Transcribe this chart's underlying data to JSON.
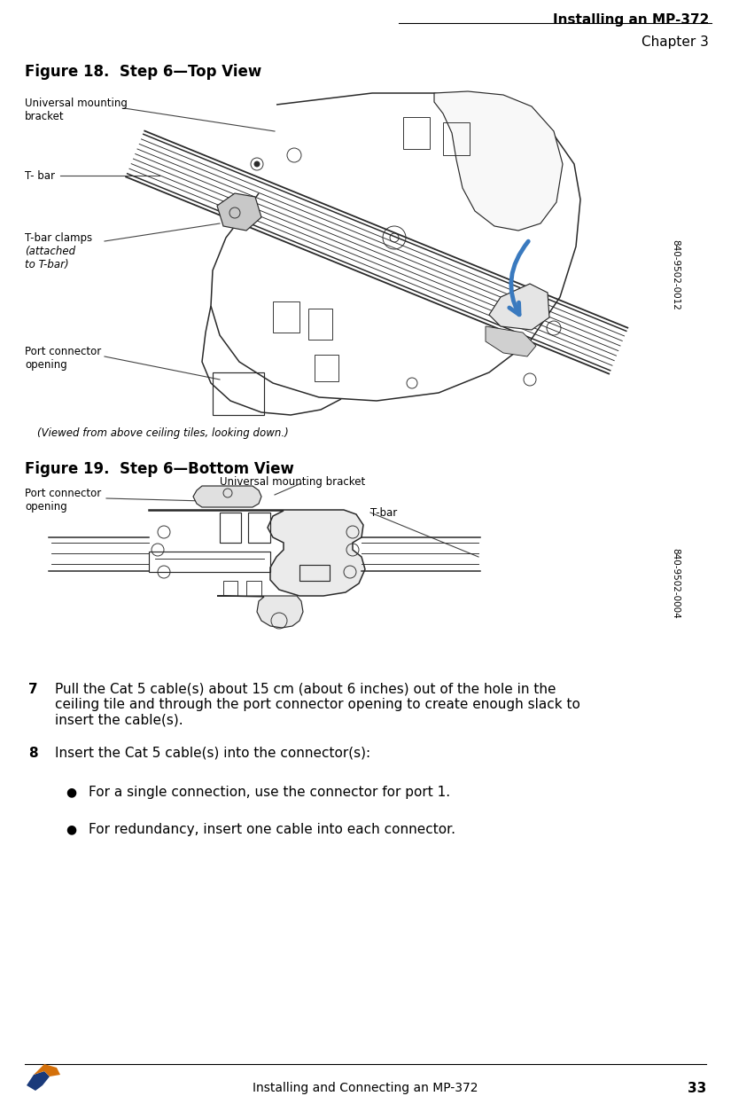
{
  "page_title": "Installing an MP-372",
  "page_subtitle": "Chapter 3",
  "footer_text": "Installing and Connecting an MP-372",
  "page_number": "33",
  "fig18_title": "Figure 18.  Step 6—Top View",
  "fig19_title": "Figure 19.  Step 6—Bottom View",
  "fig18_caption": "(Viewed from above ceiling tiles, looking down.)",
  "fig18_part_number": "840-9502-0012",
  "fig19_part_number": "840-9502-0004",
  "fig18_labels": {
    "universal_mounting_bracket": "Universal mounting\nbracket",
    "t_bar": "T- bar",
    "t_bar_clamps": "T-bar clamps",
    "t_bar_clamps_italic": "(attached\nto T-bar)",
    "port_connector_opening": "Port connector\nopening"
  },
  "fig19_labels": {
    "port_connector_opening": "Port connector\nopening",
    "universal_mounting_bracket": "Universal mounting bracket",
    "t_bar": "T-bar"
  },
  "step7_number": "7",
  "step7_text": "Pull the Cat 5 cable(s) about 15 cm (about 6 inches) out of the hole in the\nceiling tile and through the port connector opening to create enough slack to\ninsert the cable(s).",
  "step8_number": "8",
  "step8_text": "Insert the Cat 5 cable(s) into the connector(s):",
  "bullet1": "For a single connection, use the connector for port 1.",
  "bullet2": "For redundancy, insert one cable into each connector.",
  "bg_color": "#ffffff",
  "text_color": "#000000",
  "line_color": "#2a2a2a",
  "diagram_fill": "#f0f0f0",
  "arrow_color": "#3a7abf",
  "logo_blue": "#1a3a7a",
  "logo_orange": "#d4700a"
}
